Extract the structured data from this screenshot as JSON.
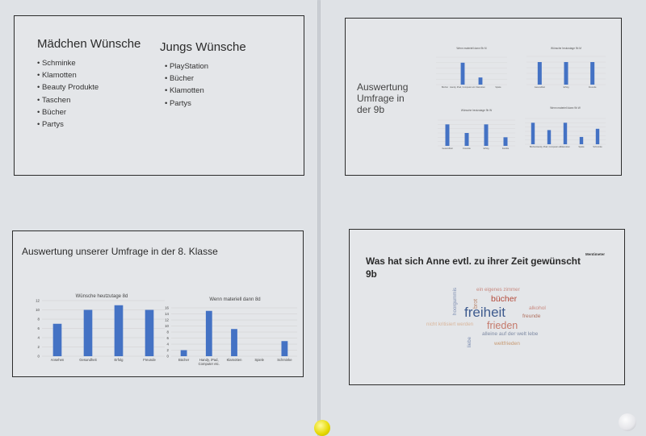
{
  "slide1": {
    "girls_title": "Mädchen Wünsche",
    "girls_items": [
      "Schminke",
      "Klamotten",
      "Beauty Produkte",
      "Taschen",
      "Bücher",
      "Partys"
    ],
    "boys_title": "Jungs Wünsche",
    "boys_items": [
      "PlayStation",
      "Bücher",
      "Klamotten",
      "Partys"
    ]
  },
  "slide2": {
    "title_lines": [
      "Auswertung",
      "Umfrage in",
      "der 9b"
    ],
    "charts": [
      {
        "title": "Wenn materiell dann 9b M",
        "categories": [
          "Bücher",
          "Handy, iPad, Computer etc.",
          "Klamotten",
          "Spiele"
        ],
        "values": [
          0,
          4,
          1.3,
          0
        ],
        "ylim": [
          0,
          5
        ]
      },
      {
        "title": "Wünsche heutzutage 9b M",
        "categories": [
          "Gesundheit",
          "Erfolg",
          "Freunde"
        ],
        "values": [
          4,
          4,
          4
        ],
        "ylim": [
          0,
          5
        ]
      },
      {
        "title": "Wünsche heutzutage 9b W",
        "categories": [
          "Gesundheit",
          "Freunde",
          "Erfolg",
          "Familie"
        ],
        "values": [
          5,
          3,
          5,
          2
        ],
        "ylim": [
          0,
          6
        ]
      },
      {
        "title": "Wenn materiell dann 9b W",
        "categories": [
          "Bücher",
          "Handy, iPad, Computer etc.",
          "Klamotten",
          "Spiele",
          "Schminke"
        ],
        "values": [
          5,
          3.3,
          5,
          1.7,
          3.6
        ],
        "ylim": [
          0,
          6
        ]
      }
    ]
  },
  "slide3": {
    "title": "Auswertung unserer Umfrage in der 8. Klasse"
  },
  "chart_data": [
    {
      "type": "bar",
      "title": "Wünsche heutzutage 8d",
      "categories": [
        "Ansehen",
        "Gesundheit",
        "Erfolg",
        "Freunde"
      ],
      "values": [
        7,
        10,
        11,
        10
      ],
      "ylim": [
        0,
        12
      ],
      "yticks": [
        0,
        2,
        4,
        6,
        8,
        10,
        12
      ],
      "grid": true,
      "color": "#4472c4"
    },
    {
      "type": "bar",
      "title": "Wenn materiell dann 8d",
      "categories": [
        "Bücher",
        "Handy, iPad, Computer etc.",
        "Klamotten",
        "Spiele",
        "Schminke"
      ],
      "values": [
        2,
        15,
        9,
        0,
        5
      ],
      "ylim": [
        0,
        16
      ],
      "yticks": [
        0,
        2,
        4,
        6,
        8,
        10,
        12,
        14,
        16
      ],
      "grid": true,
      "color": "#4472c4"
    }
  ],
  "slide4": {
    "title": "Was hat sich Anne evtl. zu ihrer Zeit gewünscht 9b",
    "logo": "Mentimeter",
    "words": [
      {
        "text": "freiheit",
        "color": "#3e5b8e"
      },
      {
        "text": "frieden",
        "color": "#c57a6c"
      },
      {
        "text": "bücher",
        "color": "#b44a3a"
      },
      {
        "text": "ein eigenes zimmer",
        "color": "#c98a80"
      },
      {
        "text": "alkohol",
        "color": "#c98a80"
      },
      {
        "text": "freunde",
        "color": "#b0705e"
      },
      {
        "text": "nicht kritisiert werden",
        "color": "#d9b59a"
      },
      {
        "text": "alleine auf der welt lebe",
        "color": "#7e8aa3"
      },
      {
        "text": "weltfrieden",
        "color": "#c79a72"
      },
      {
        "text": "hoorgummis",
        "color": "#7d8db1"
      },
      {
        "text": "brot",
        "color": "#b9866c"
      },
      {
        "text": "liebe",
        "color": "#7d8db1"
      }
    ]
  }
}
